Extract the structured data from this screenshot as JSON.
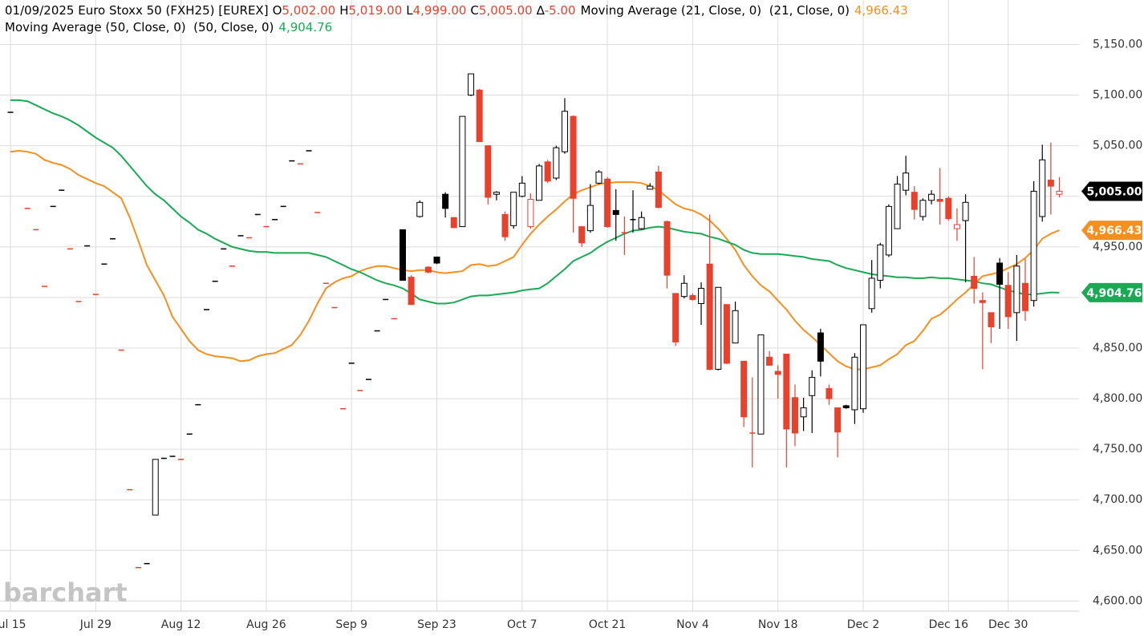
{
  "chart_data": {
    "type": "candlestick",
    "header": {
      "title": "01/09/2025 Euro Stoxx 50 (FXH25) [EUREX]",
      "fields": [
        {
          "key": "O",
          "value": "5,002.00"
        },
        {
          "key": "H",
          "value": "5,019.00"
        },
        {
          "key": "L",
          "value": "4,999.00"
        },
        {
          "key": "C",
          "value": "5,005.00"
        },
        {
          "key": "∆",
          "value": "-5.00"
        }
      ]
    },
    "watermark": "barchart",
    "up_color": "#000000",
    "down_color": "#e8412c",
    "categories": [
      "Jul 15",
      null,
      null,
      null,
      null,
      null,
      null,
      null,
      null,
      null,
      "Jul 29",
      null,
      null,
      null,
      null,
      null,
      null,
      null,
      null,
      null,
      "Aug 12",
      null,
      null,
      null,
      null,
      null,
      null,
      null,
      null,
      null,
      "Aug 26",
      null,
      null,
      null,
      null,
      null,
      null,
      null,
      null,
      null,
      "Sep 9",
      null,
      null,
      null,
      null,
      null,
      null,
      null,
      null,
      null,
      "Sep 23",
      null,
      null,
      null,
      null,
      null,
      null,
      null,
      null,
      null,
      "Oct 7",
      null,
      null,
      null,
      null,
      null,
      null,
      null,
      null,
      null,
      "Oct 21",
      null,
      null,
      null,
      null,
      null,
      null,
      null,
      null,
      null,
      "Nov 4",
      null,
      null,
      null,
      null,
      null,
      null,
      null,
      null,
      null,
      "Nov 18",
      null,
      null,
      null,
      null,
      null,
      null,
      null,
      null,
      null,
      "Dec 2",
      null,
      null,
      null,
      null,
      null,
      null,
      null,
      null,
      null,
      "Dec 16",
      null,
      null,
      null,
      null,
      null,
      null,
      "Dec 30",
      null,
      null,
      null,
      null,
      null,
      null
    ],
    "open": [
      5083,
      null,
      4988,
      4967,
      4911,
      4990,
      5006,
      4948,
      4896,
      4951,
      4903,
      4933,
      4958,
      4848,
      4710,
      4633,
      4637,
      4685,
      4741,
      4743,
      4740,
      4765,
      4794,
      4888,
      4916,
      4948,
      4931,
      4961,
      4959,
      4982,
      4970,
      4977,
      4990,
      5035,
      5032,
      5045,
      4984,
      4914,
      4890,
      4790,
      4835,
      4808,
      4819,
      4867,
      4898,
      4879,
      4967,
      4920,
      4980,
      4930,
      4940,
      5002,
      4979,
      4970,
      5100,
      5105,
      5050,
      5002,
      4982,
      4971,
      5000,
      4970,
      4996,
      5034,
      5018,
      5044,
      5079,
      4970,
      4966,
      5013,
      5017,
      4986,
      4964,
      4977,
      4968,
      5007,
      5024,
      4975,
      4904,
      4901,
      4902,
      4894,
      4933,
      4829,
      4893,
      4855,
      4837,
      4766,
      4765,
      4841,
      4827,
      4844,
      4801,
      4782,
      4803,
      4865,
      4810,
      4791,
      4793,
      4789,
      4790,
      4889,
      4917,
      4942,
      4968,
      5006,
      5004,
      4980,
      4996,
      4997,
      4998,
      4968,
      4976,
      4921,
      4897,
      4885,
      4934,
      4912,
      4885,
      4914,
      4897,
      4980,
      5016,
      5002
    ],
    "high": [
      5083,
      null,
      4988,
      4967,
      4911,
      4990,
      5006,
      4948,
      4896,
      4951,
      4903,
      4933,
      4958,
      4848,
      4710,
      4633,
      4637,
      4740,
      4741,
      4743,
      4740,
      4765,
      4794,
      4888,
      4916,
      4948,
      4931,
      4961,
      4959,
      4982,
      4970,
      4977,
      4990,
      5035,
      5032,
      5045,
      4984,
      4914,
      4890,
      4790,
      4835,
      4808,
      4819,
      4867,
      4898,
      4879,
      4967,
      4922,
      4996,
      4931,
      4940,
      5004,
      4979,
      5079,
      5121,
      5106,
      5050,
      5005,
      4985,
      5004,
      5020,
      5003,
      5032,
      5036,
      5050,
      5097,
      5080,
      4970,
      5012,
      5026,
      5019,
      5007,
      4980,
      5006,
      4985,
      5013,
      5030,
      4976,
      4904,
      4922,
      4904,
      4915,
      4982,
      4910,
      4893,
      4896,
      4837,
      4821,
      4863,
      4847,
      4833,
      4844,
      4814,
      4801,
      4828,
      4869,
      4814,
      4791,
      4794,
      4845,
      4873,
      4937,
      4954,
      4992,
      5020,
      5040,
      5010,
      4998,
      5006,
      5028,
      5000,
      4988,
      5002,
      4940,
      4905,
      4885,
      4939,
      4925,
      4942,
      4938,
      5015,
      5051,
      5053,
      5019
    ],
    "low": [
      5083,
      null,
      4988,
      4967,
      4911,
      4990,
      5006,
      4948,
      4896,
      4951,
      4903,
      4933,
      4958,
      4848,
      4710,
      4633,
      4637,
      4685,
      4741,
      4743,
      4740,
      4765,
      4794,
      4888,
      4916,
      4948,
      4931,
      4961,
      4959,
      4982,
      4970,
      4977,
      4990,
      5035,
      5032,
      5045,
      4984,
      4914,
      4890,
      4790,
      4835,
      4808,
      4819,
      4867,
      4898,
      4879,
      4917,
      4893,
      4979,
      4924,
      4933,
      4979,
      4969,
      4970,
      5099,
      5054,
      4992,
      4996,
      4956,
      4968,
      4999,
      4968,
      4996,
      5013,
      5016,
      5042,
      4964,
      4950,
      4964,
      5012,
      4969,
      4956,
      4942,
      4964,
      4967,
      5007,
      4988,
      4909,
      4852,
      4899,
      4897,
      4873,
      4828,
      4828,
      4834,
      4855,
      4772,
      4732,
      4765,
      4833,
      4800,
      4732,
      4753,
      4768,
      4766,
      4822,
      4794,
      4742,
      4790,
      4775,
      4786,
      4885,
      4909,
      4940,
      4968,
      5001,
      4977,
      4976,
      4992,
      4972,
      4976,
      4956,
      4915,
      4894,
      4829,
      4855,
      4869,
      4869,
      4857,
      4877,
      4891,
      4975,
      4982,
      4999
    ],
    "close": [
      5083,
      null,
      4988,
      4967,
      4911,
      4990,
      5006,
      4948,
      4896,
      4951,
      4903,
      4933,
      4958,
      4848,
      4710,
      4633,
      4637,
      4740,
      4741,
      4743,
      4740,
      4765,
      4794,
      4888,
      4916,
      4948,
      4931,
      4961,
      4959,
      4982,
      4970,
      4977,
      4990,
      5035,
      5032,
      5045,
      4984,
      4914,
      4890,
      4790,
      4835,
      4808,
      4819,
      4867,
      4898,
      4879,
      4917,
      4893,
      4994,
      4925,
      4934,
      4988,
      4969,
      5079,
      5121,
      5054,
      4999,
      5004,
      4960,
      5004,
      5013,
      4997,
      5030,
      5015,
      5048,
      5084,
      4998,
      4954,
      4991,
      5024,
      4970,
      4982,
      4963,
      4976,
      4979,
      5010,
      4989,
      4922,
      4856,
      4914,
      4898,
      4909,
      4829,
      4910,
      4835,
      4887,
      4782,
      4765,
      4863,
      4833,
      4824,
      4770,
      4766,
      4791,
      4821,
      4837,
      4800,
      4767,
      4791,
      4841,
      4873,
      4919,
      4952,
      4990,
      5012,
      5023,
      4987,
      4996,
      5002,
      4995,
      4978,
      4972,
      4994,
      4909,
      4895,
      4871,
      4913,
      4881,
      4931,
      4887,
      5005,
      5036,
      5010,
      5005
    ],
    "last_close_label": "5,005.00",
    "moving_averages": [
      {
        "name": "Moving Average (21, Close, 0)  (21, Close, 0)",
        "color": "#f5901e",
        "value_label": "4,966.43",
        "values": [
          5044,
          5045,
          5044,
          5042,
          5036,
          5033,
          5031,
          5027,
          5021,
          5017,
          5013,
          5010,
          5004,
          4998,
          4979,
          4956,
          4932,
          4917,
          4902,
          4881,
          4869,
          4857,
          4848,
          4844,
          4842,
          4841,
          4840,
          4837,
          4838,
          4842,
          4844,
          4845,
          4849,
          4853,
          4863,
          4877,
          4894,
          4909,
          4915,
          4919,
          4921,
          4926,
          4929,
          4931,
          4931,
          4929,
          4927,
          4926,
          4927,
          4927,
          4925,
          4924,
          4925,
          4926,
          4932,
          4933,
          4931,
          4932,
          4936,
          4940,
          4952,
          4963,
          4972,
          4980,
          4987,
          4995,
          5002,
          5006,
          5009,
          5012,
          5013,
          5014,
          5014,
          5014,
          5013,
          5010,
          5006,
          4999,
          4992,
          4988,
          4986,
          4982,
          4976,
          4968,
          4958,
          4947,
          4932,
          4921,
          4912,
          4906,
          4897,
          4888,
          4877,
          4868,
          4861,
          4853,
          4845,
          4837,
          4832,
          4829,
          4829,
          4831,
          4833,
          4839,
          4844,
          4853,
          4857,
          4867,
          4879,
          4883,
          4890,
          4898,
          4905,
          4913,
          4921,
          4923,
          4925,
          4929,
          4933,
          4939,
          4947,
          4958,
          4963,
          4966.43
        ]
      },
      {
        "name": "Moving Average (50, Close, 0)  (50, Close, 0)",
        "color": "#1aaa55",
        "value_label": "4,904.76",
        "values": [
          5095,
          5095,
          5094,
          5090,
          5086,
          5082,
          5079,
          5075,
          5070,
          5064,
          5058,
          5053,
          5048,
          5040,
          5030,
          5020,
          5010,
          5002,
          4996,
          4988,
          4980,
          4974,
          4967,
          4963,
          4958,
          4954,
          4950,
          4948,
          4946,
          4945,
          4945,
          4944,
          4944,
          4944,
          4944,
          4944,
          4942,
          4940,
          4936,
          4932,
          4928,
          4925,
          4921,
          4917,
          4914,
          4912,
          4909,
          4904,
          4898,
          4896,
          4894,
          4894,
          4895,
          4898,
          4901,
          4902,
          4902,
          4903,
          4904,
          4905,
          4907,
          4908,
          4909,
          4914,
          4921,
          4928,
          4936,
          4940,
          4944,
          4950,
          4955,
          4959,
          4963,
          4966,
          4967,
          4969,
          4970,
          4969,
          4967,
          4965,
          4964,
          4963,
          4960,
          4958,
          4955,
          4952,
          4947,
          4944,
          4943,
          4943,
          4943,
          4942,
          4941,
          4940,
          4938,
          4937,
          4936,
          4932,
          4929,
          4927,
          4925,
          4923,
          4922,
          4921,
          4920,
          4920,
          4919,
          4919,
          4920,
          4919,
          4919,
          4918,
          4917,
          4916,
          4914,
          4913,
          4910,
          4907,
          4905,
          4903,
          4903,
          4904,
          4905,
          4904.76
        ]
      }
    ],
    "ylim": [
      4590,
      5194
    ],
    "yticks": [
      {
        "value": 4600,
        "label": "4,600.00"
      },
      {
        "value": 4650,
        "label": "4,650.00"
      },
      {
        "value": 4700,
        "label": "4,700.00"
      },
      {
        "value": 4750,
        "label": "4,750.00"
      },
      {
        "value": 4800,
        "label": "4,800.00"
      },
      {
        "value": 4850,
        "label": "4,850.00"
      },
      {
        "value": 4900,
        "label": "4,900.00"
      },
      {
        "value": 4950,
        "label": "4,950.00"
      },
      {
        "value": 5000,
        "label": "5,000.00"
      },
      {
        "value": 5050,
        "label": "5,050.00"
      },
      {
        "value": 5100,
        "label": "5,100.00"
      },
      {
        "value": 5150,
        "label": "5,150.00"
      }
    ],
    "grid": true
  }
}
